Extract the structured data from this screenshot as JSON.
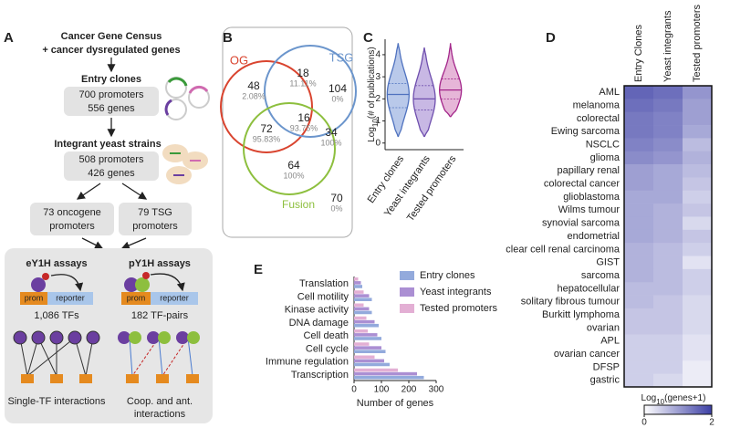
{
  "panel_labels": [
    "A",
    "B",
    "C",
    "D",
    "E"
  ],
  "workflow": {
    "source": [
      "Cancer Gene Census",
      "+ cancer dysregulated genes"
    ],
    "entry": {
      "title": "Entry clones",
      "lines": [
        "700 promoters",
        "556 genes"
      ]
    },
    "yeast": {
      "title": "Integrant yeast strains",
      "lines": [
        "508 promoters",
        "426 genes"
      ]
    },
    "oncogene": [
      "73 oncogene",
      "promoters"
    ],
    "tsg": [
      "79 TSG",
      "promoters"
    ],
    "ey1h": {
      "title": "eY1H assays",
      "prom": "prom",
      "reporter": "reporter",
      "count": "1,086 TFs",
      "caption": [
        "Single-TF interactions"
      ]
    },
    "py1h": {
      "title": "pY1H assays",
      "prom": "prom",
      "reporter": "reporter",
      "count": "182 TF-pairs",
      "caption": [
        "Coop. and ant.",
        "interactions"
      ]
    }
  },
  "venn": {
    "sets": [
      {
        "name": "OG",
        "color": "#d9442f"
      },
      {
        "name": "TSG",
        "color": "#6b95cc"
      },
      {
        "name": "Fusion",
        "color": "#8dbf3e"
      }
    ],
    "regions": [
      {
        "count": 48,
        "percent": "2.08%"
      },
      {
        "count": 18,
        "percent": "11.11%"
      },
      {
        "count": 104,
        "percent": "0%"
      },
      {
        "count": 72,
        "percent": "95.83%"
      },
      {
        "count": 16,
        "percent": "93.75%"
      },
      {
        "count": 34,
        "percent": "100%"
      },
      {
        "count": 64,
        "percent": "100%"
      },
      {
        "count": 70,
        "percent": "0%"
      }
    ]
  },
  "chart_data": [
    {
      "type": "violin",
      "ylabel": {
        "base": "Log",
        "subscript": "10",
        "rest": "(# of publications)"
      },
      "categories": [
        "Entry clones",
        "Yeast integrants",
        "Tested promoters"
      ],
      "colors": [
        "#4f72bf",
        "#6f4fae",
        "#a3268a"
      ],
      "fills": [
        "#b9c9ea",
        "#c8b8e4",
        "#e6b6d8"
      ],
      "min": [
        0.3,
        0.3,
        1.2
      ],
      "q1": [
        1.6,
        1.5,
        2.0
      ],
      "median": [
        2.2,
        2.0,
        2.4
      ],
      "q3": [
        2.7,
        2.6,
        2.9
      ],
      "max": [
        4.5,
        4.3,
        4.5
      ],
      "ylim": [
        -0.3,
        4.7
      ],
      "yticks": [
        0,
        1,
        2,
        3,
        4
      ]
    },
    {
      "type": "heatmap",
      "columns": [
        "Entry Clones",
        "Yeast integrants",
        "Tested promoters"
      ],
      "rows": [
        "AML",
        "melanoma",
        "colorectal",
        "Ewing sarcoma",
        "NSCLC",
        "glioma",
        "papillary renal",
        "colorectal cancer",
        "glioblastoma",
        "Wilms tumour",
        "synovial sarcoma",
        "endometrial",
        "clear cell renal carcinoma",
        "GIST",
        "sarcoma",
        "hepatocellular",
        "solitary fibrous tumour",
        "Burkitt lymphoma",
        "ovarian",
        "APL",
        "ovarian cancer",
        "DFSP",
        "gastric"
      ],
      "values": [
        [
          1.6,
          1.5,
          1.1
        ],
        [
          1.5,
          1.4,
          1.0
        ],
        [
          1.4,
          1.3,
          1.0
        ],
        [
          1.4,
          1.3,
          0.9
        ],
        [
          1.3,
          1.2,
          0.7
        ],
        [
          1.2,
          1.1,
          0.8
        ],
        [
          1.0,
          0.9,
          0.7
        ],
        [
          1.0,
          0.9,
          0.6
        ],
        [
          0.9,
          0.9,
          0.5
        ],
        [
          0.9,
          0.8,
          0.6
        ],
        [
          0.9,
          0.8,
          0.4
        ],
        [
          0.9,
          0.8,
          0.6
        ],
        [
          0.8,
          0.7,
          0.5
        ],
        [
          0.8,
          0.7,
          0.3
        ],
        [
          0.8,
          0.7,
          0.5
        ],
        [
          0.7,
          0.7,
          0.5
        ],
        [
          0.7,
          0.6,
          0.4
        ],
        [
          0.6,
          0.6,
          0.4
        ],
        [
          0.6,
          0.6,
          0.4
        ],
        [
          0.5,
          0.5,
          0.3
        ],
        [
          0.5,
          0.5,
          0.3
        ],
        [
          0.5,
          0.5,
          0.2
        ],
        [
          0.5,
          0.4,
          0.2
        ]
      ],
      "colormap": [
        "#ffffff",
        "#3c3fa5"
      ],
      "colorbar": {
        "label": {
          "base": "Log",
          "subscript": "10",
          "rest": "(genes+1)"
        },
        "lim": [
          0,
          2
        ],
        "ticks": [
          0,
          2
        ]
      }
    },
    {
      "type": "bar",
      "orientation": "horizontal",
      "categories": [
        "Translation",
        "Cell motility",
        "Kinase activity",
        "DNA damage",
        "Cell death",
        "Cell cycle",
        "Immune regulation",
        "Transcription"
      ],
      "series": [
        {
          "name": "Entry clones",
          "color": "#93aadc",
          "values": [
            30,
            65,
            65,
            90,
            100,
            115,
            130,
            255
          ]
        },
        {
          "name": "Yeast integrants",
          "color": "#ab8fd3",
          "values": [
            25,
            55,
            55,
            75,
            85,
            100,
            110,
            230
          ]
        },
        {
          "name": "Tested promoters",
          "color": "#e3afd4",
          "values": [
            15,
            35,
            35,
            45,
            50,
            55,
            75,
            160
          ]
        }
      ],
      "xlim": [
        0,
        300
      ],
      "xticks": [
        0,
        100,
        200,
        300
      ],
      "xlabel": "Number of genes"
    }
  ]
}
